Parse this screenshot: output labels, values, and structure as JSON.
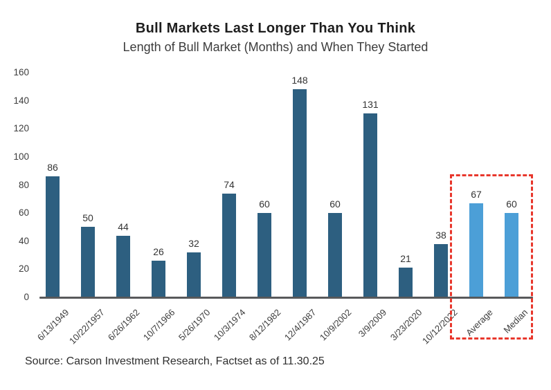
{
  "title": "Bull Markets Last Longer Than You Think",
  "subtitle": "Length of Bull Market (Months) and When They Started",
  "source_note": "Source: Carson Investment Research, Factset as of 11.30.25",
  "colors": {
    "bar_default": "#2d5f80",
    "bar_highlight": "#4c9fd7",
    "highlight_box_border": "#e8372c",
    "axis_line": "#58595b",
    "title_text": "#1d1d1d",
    "label_text": "#3c3c3c"
  },
  "chart_data": {
    "type": "bar",
    "title": "Bull Markets Last Longer Than You Think",
    "subtitle": "Length of Bull Market (Months) and When They Started",
    "categories": [
      "6/13/1949",
      "10/22/1957",
      "6/26/1962",
      "10/7/1966",
      "5/26/1970",
      "10/3/1974",
      "8/12/1982",
      "12/4/1987",
      "10/9/2002",
      "3/9/2009",
      "3/23/2020",
      "10/12/2022",
      "Average",
      "Median"
    ],
    "values": [
      86,
      50,
      44,
      26,
      32,
      74,
      60,
      148,
      60,
      131,
      21,
      38,
      67,
      60
    ],
    "highlighted_categories": [
      "Average",
      "Median"
    ],
    "xlabel": "",
    "ylabel": "",
    "ylim": [
      0,
      160
    ],
    "yticks": [
      0,
      20,
      40,
      60,
      80,
      100,
      120,
      140,
      160
    ],
    "grid": false,
    "legend_position": "none",
    "data_labels": true,
    "x_tick_rotation_deg": 45
  }
}
